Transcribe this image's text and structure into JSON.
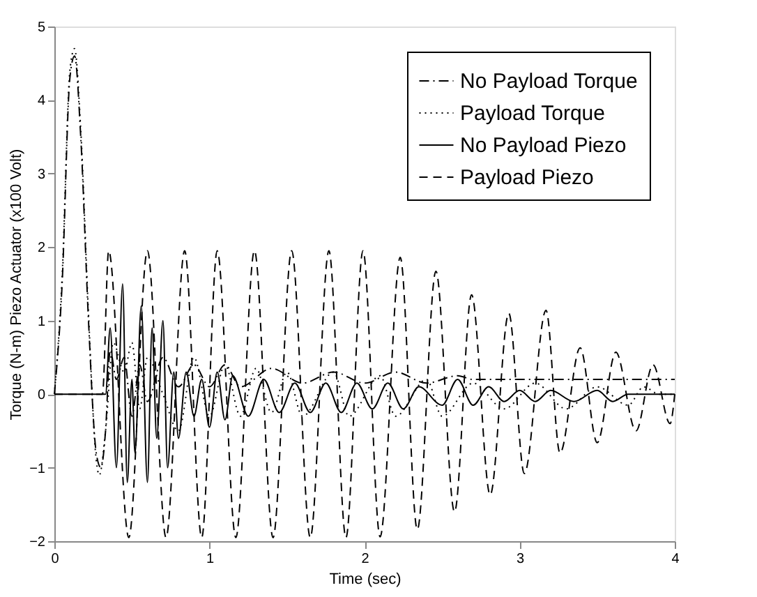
{
  "chart_data": {
    "type": "line",
    "xlabel": "Time (sec)",
    "ylabel": "Torque (N-m) Piezo Actuator (x100 Volt)",
    "xlim": [
      0,
      4
    ],
    "xticks": [
      0,
      1,
      2,
      3,
      4
    ],
    "ylim": [
      -2,
      5
    ],
    "yticks": [
      -2,
      -1,
      0,
      1,
      2,
      3,
      4,
      5
    ],
    "grid": false,
    "legend": "top right",
    "series": [
      {
        "name": "No Payload Torque",
        "color": "#000000",
        "line_style": "dashdot",
        "x": [
          0,
          0.05,
          0.1,
          0.13,
          0.17,
          0.22,
          0.27,
          0.3,
          0.33,
          0.36,
          0.4,
          0.45,
          0.5,
          0.55,
          0.6,
          0.7,
          0.8,
          0.9,
          1.0,
          1.1,
          1.2,
          1.4,
          1.6,
          1.8,
          2.0,
          2.2,
          2.4,
          2.6,
          2.7,
          4.0
        ],
        "values": [
          0,
          1.5,
          4.3,
          4.6,
          3.5,
          1,
          -0.8,
          -1.0,
          -0.5,
          0.6,
          0.2,
          0.5,
          -0.3,
          0.4,
          -0.1,
          0.5,
          0.1,
          0.4,
          0.1,
          0.4,
          0.1,
          0.35,
          0.15,
          0.3,
          0.15,
          0.3,
          0.15,
          0.25,
          0.2,
          0.2
        ]
      },
      {
        "name": "Payload Torque",
        "color": "#000000",
        "line_style": "dotted",
        "x": [
          0,
          0.05,
          0.1,
          0.13,
          0.17,
          0.22,
          0.27,
          0.29,
          0.33,
          0.38,
          0.45,
          0.5,
          0.55,
          0.6,
          0.7,
          0.8,
          0.9,
          1.0,
          1.1,
          1.2,
          1.3,
          1.4,
          1.5,
          1.6,
          1.8,
          1.9,
          2.1,
          2.2,
          2.4,
          2.5,
          2.7,
          2.9,
          3.1,
          3.3,
          3.5,
          3.7,
          3.8,
          3.9,
          4.0
        ],
        "values": [
          0,
          1.6,
          4.4,
          4.7,
          3.6,
          1.1,
          -0.9,
          -1.1,
          -0.5,
          0.7,
          0.3,
          0.7,
          -0.2,
          0.5,
          0.0,
          -0.5,
          0.5,
          -0.3,
          0.4,
          -0.3,
          0.35,
          -0.25,
          0.3,
          -0.3,
          0.3,
          -0.3,
          0.25,
          -0.3,
          0.2,
          -0.3,
          0.15,
          -0.2,
          0.15,
          -0.2,
          0.1,
          -0.15,
          0.1,
          0,
          0
        ]
      },
      {
        "name": "No Payload Piezo",
        "color": "#000000",
        "line_style": "solid",
        "x": [
          0,
          0.33,
          0.36,
          0.4,
          0.44,
          0.47,
          0.5,
          0.52,
          0.56,
          0.6,
          0.63,
          0.66,
          0.7,
          0.73,
          0.77,
          0.8,
          0.85,
          0.9,
          0.95,
          1.0,
          1.05,
          1.1,
          1.15,
          1.25,
          1.35,
          1.45,
          1.55,
          1.65,
          1.75,
          1.85,
          1.95,
          2.05,
          2.15,
          2.25,
          2.35,
          2.5,
          2.6,
          2.7,
          2.8,
          2.9,
          3.0,
          3.1,
          3.2,
          3.35,
          3.5,
          3.6,
          3.7,
          4.0
        ],
        "values": [
          0,
          0,
          0.9,
          -1.0,
          1.5,
          -1.2,
          0.2,
          -0.8,
          1.2,
          -1.2,
          0.9,
          -0.6,
          1.0,
          -1.0,
          0.3,
          -0.6,
          0.3,
          -0.3,
          0.2,
          -0.45,
          0.3,
          -0.35,
          0.25,
          -0.3,
          0.2,
          -0.25,
          0.15,
          -0.25,
          0.15,
          -0.25,
          0.15,
          -0.2,
          0.15,
          -0.2,
          0.1,
          -0.15,
          0.2,
          -0.15,
          0.1,
          -0.1,
          0.05,
          -0.1,
          0.05,
          -0.1,
          0.05,
          -0.1,
          0,
          0
        ]
      },
      {
        "name": "Payload Piezo",
        "color": "#000000",
        "line_style": "dashed",
        "x": [
          0,
          0.31,
          0.35,
          0.48,
          0.6,
          0.72,
          0.84,
          0.95,
          1.05,
          1.17,
          1.29,
          1.41,
          1.53,
          1.65,
          1.77,
          1.88,
          1.99,
          2.1,
          2.23,
          2.34,
          2.46,
          2.58,
          2.69,
          2.81,
          2.93,
          3.03,
          3.17,
          3.26,
          3.39,
          3.5,
          3.62,
          3.75,
          3.86,
          3.97,
          4.0
        ],
        "values": [
          0,
          0,
          1.95,
          -1.95,
          1.95,
          -1.95,
          1.95,
          -1.95,
          1.95,
          -1.95,
          1.95,
          -1.95,
          1.95,
          -1.95,
          1.95,
          -1.95,
          1.95,
          -1.94,
          1.86,
          -1.84,
          1.67,
          -1.6,
          1.35,
          -1.37,
          1.1,
          -1.08,
          1.14,
          -0.8,
          0.63,
          -0.66,
          0.57,
          -0.5,
          0.4,
          -0.4,
          0
        ]
      }
    ]
  }
}
